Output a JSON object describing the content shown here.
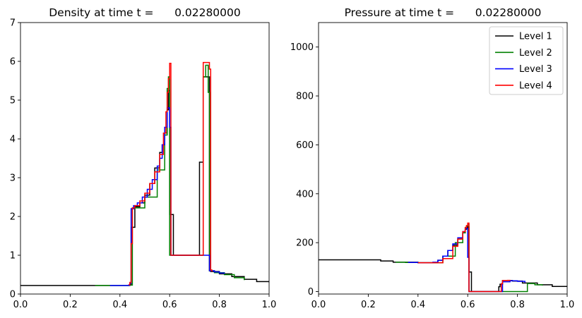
{
  "chart_data": [
    {
      "type": "line",
      "title": "Density at time t =      0.02280000",
      "xlabel": "",
      "ylabel": "",
      "xlim": [
        0.0,
        1.0
      ],
      "ylim": [
        0,
        7
      ],
      "xticks": [
        0.0,
        0.2,
        0.4,
        0.6,
        0.8,
        1.0
      ],
      "xtick_labels": [
        "0.0",
        "0.2",
        "0.4",
        "0.6",
        "0.8",
        "1.0"
      ],
      "yticks": [
        0,
        1,
        2,
        3,
        4,
        5,
        6,
        7
      ],
      "ytick_labels": [
        "0",
        "1",
        "2",
        "3",
        "4",
        "5",
        "6",
        "7"
      ],
      "grid": false,
      "series": [
        {
          "name": "Level 1",
          "color": "#000000",
          "x": [
            0.0,
            0.33,
            0.44,
            0.445,
            0.455,
            0.46,
            0.48,
            0.5,
            0.52,
            0.54,
            0.56,
            0.57,
            0.58,
            0.59,
            0.595,
            0.6,
            0.605,
            0.61,
            0.615,
            0.62,
            0.67,
            0.72,
            0.725,
            0.735,
            0.74,
            0.745,
            0.75,
            0.755,
            0.76,
            0.765,
            0.77,
            0.8,
            0.85,
            0.9,
            0.95,
            1.0
          ],
          "y": [
            0.22,
            0.22,
            0.25,
            1.72,
            1.72,
            2.25,
            2.35,
            2.55,
            2.85,
            3.25,
            3.65,
            3.85,
            4.15,
            4.75,
            5.25,
            2.05,
            2.05,
            2.05,
            1.0,
            1.0,
            1.0,
            3.4,
            3.4,
            5.6,
            5.6,
            5.6,
            5.6,
            5.6,
            0.6,
            0.58,
            0.58,
            0.52,
            0.45,
            0.38,
            0.32,
            0.3
          ]
        },
        {
          "name": "Level 2",
          "color": "#008000",
          "x": [
            0.3,
            0.35,
            0.42,
            0.44,
            0.45,
            0.5,
            0.55,
            0.58,
            0.59,
            0.595,
            0.6,
            0.73,
            0.735,
            0.745,
            0.75,
            0.755,
            0.76,
            0.78,
            0.82,
            0.86,
            0.9
          ],
          "y": [
            0.22,
            0.22,
            0.22,
            0.23,
            2.22,
            2.5,
            3.2,
            4.1,
            5.3,
            5.6,
            1.0,
            1.0,
            5.6,
            5.9,
            5.9,
            5.2,
            0.6,
            0.55,
            0.5,
            0.42,
            0.36
          ]
        },
        {
          "name": "Level 3",
          "color": "#0000ff",
          "x": [
            0.36,
            0.4,
            0.42,
            0.435,
            0.44,
            0.445,
            0.455,
            0.47,
            0.49,
            0.51,
            0.53,
            0.55,
            0.56,
            0.57,
            0.58,
            0.59,
            0.6,
            0.605,
            0.61,
            0.63,
            0.66,
            0.7,
            0.73,
            0.76,
            0.78,
            0.8,
            0.82
          ],
          "y": [
            0.22,
            0.22,
            0.22,
            0.23,
            0.28,
            2.2,
            2.28,
            2.35,
            2.5,
            2.7,
            2.95,
            3.3,
            3.5,
            3.85,
            4.3,
            4.8,
            4.3,
            1.0,
            1.0,
            1.0,
            1.0,
            1.0,
            1.0,
            0.6,
            0.57,
            0.54,
            0.52
          ]
        },
        {
          "name": "Level 4",
          "color": "#ff0000",
          "x": [
            0.435,
            0.44,
            0.445,
            0.45,
            0.46,
            0.48,
            0.5,
            0.52,
            0.54,
            0.56,
            0.575,
            0.585,
            0.59,
            0.595,
            0.6,
            0.605,
            0.73,
            0.735,
            0.74,
            0.75,
            0.755,
            0.76,
            0.765,
            0.77
          ],
          "y": [
            0.24,
            0.3,
            1.3,
            2.22,
            2.28,
            2.4,
            2.6,
            2.85,
            3.15,
            3.6,
            4.15,
            4.7,
            5.2,
            5.55,
            5.95,
            1.0,
            1.0,
            5.97,
            5.97,
            5.97,
            5.97,
            5.8,
            0.62,
            0.58
          ]
        }
      ]
    },
    {
      "type": "line",
      "title": "Pressure at time t =      0.02280000",
      "xlabel": "",
      "ylabel": "",
      "xlim": [
        0.0,
        1.0
      ],
      "ylim": [
        -10,
        1100
      ],
      "xticks": [
        0.0,
        0.2,
        0.4,
        0.6,
        0.8,
        1.0
      ],
      "xtick_labels": [
        "0.0",
        "0.2",
        "0.4",
        "0.6",
        "0.8",
        "1.0"
      ],
      "yticks": [
        0,
        200,
        400,
        600,
        800,
        1000
      ],
      "ytick_labels": [
        "0",
        "200",
        "400",
        "600",
        "800",
        "1000"
      ],
      "grid": false,
      "legend": {
        "placement": "top-right",
        "entries": [
          "Level 1",
          "Level 2",
          "Level 3",
          "Level 4"
        ]
      },
      "series": [
        {
          "name": "Level 1",
          "color": "#000000",
          "x": [
            0.0,
            0.2,
            0.25,
            0.3,
            0.4,
            0.45,
            0.48,
            0.5,
            0.52,
            0.54,
            0.56,
            0.58,
            0.59,
            0.595,
            0.6,
            0.605,
            0.61,
            0.615,
            0.62,
            0.67,
            0.72,
            0.725,
            0.73,
            0.74,
            0.78,
            0.82,
            0.88,
            0.94,
            1.0
          ],
          "y": [
            130,
            130,
            125,
            120,
            118,
            118,
            128,
            145,
            168,
            190,
            215,
            240,
            255,
            260,
            265,
            80,
            80,
            0,
            0,
            0,
            0,
            20,
            30,
            45,
            43,
            35,
            28,
            21,
            20
          ]
        },
        {
          "name": "Level 2",
          "color": "#008000",
          "x": [
            0.31,
            0.35,
            0.4,
            0.45,
            0.5,
            0.55,
            0.58,
            0.59,
            0.595,
            0.6,
            0.605,
            0.84,
            0.87,
            0.9
          ],
          "y": [
            120,
            119,
            118,
            118,
            145,
            200,
            240,
            262,
            268,
            275,
            0,
            33,
            28,
            25
          ]
        },
        {
          "name": "Level 3",
          "color": "#0000ff",
          "x": [
            0.36,
            0.4,
            0.43,
            0.46,
            0.48,
            0.5,
            0.52,
            0.54,
            0.56,
            0.58,
            0.59,
            0.6,
            0.605,
            0.65,
            0.7,
            0.725,
            0.74,
            0.77,
            0.8,
            0.83
          ],
          "y": [
            119,
            118,
            118,
            120,
            128,
            145,
            168,
            195,
            220,
            245,
            258,
            140,
            0,
            0,
            0,
            0,
            40,
            44,
            42,
            37
          ]
        },
        {
          "name": "Level 4",
          "color": "#ff0000",
          "x": [
            0.4,
            0.44,
            0.46,
            0.5,
            0.54,
            0.56,
            0.58,
            0.59,
            0.595,
            0.6,
            0.605,
            0.73,
            0.735,
            0.74,
            0.76,
            0.77
          ],
          "y": [
            118,
            118,
            118,
            135,
            185,
            215,
            245,
            262,
            270,
            280,
            0,
            0,
            32,
            45,
            46,
            44
          ]
        }
      ]
    }
  ]
}
